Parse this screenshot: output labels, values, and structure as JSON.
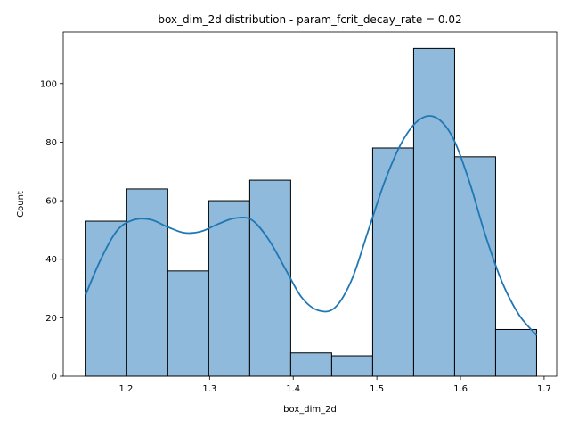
{
  "chart_data": {
    "type": "bar",
    "title": "box_dim_2d distribution - param_fcrit_decay_rate = 0.02",
    "xlabel": "box_dim_2d",
    "ylabel": "Count",
    "xlim": [
      1.125,
      1.715
    ],
    "ylim": [
      0,
      117.6
    ],
    "xticks": [
      1.2,
      1.3,
      1.4,
      1.5,
      1.6,
      1.7
    ],
    "yticks": [
      0,
      20,
      40,
      60,
      80,
      100
    ],
    "xtick_labels": [
      "1.2",
      "1.3",
      "1.4",
      "1.5",
      "1.6",
      "1.7"
    ],
    "ytick_labels": [
      "0",
      "20",
      "40",
      "60",
      "80",
      "100"
    ],
    "grid": false,
    "bar_color": "#8fbadb",
    "bar_edge_color": "#000000",
    "kde_color": "#1f77b4",
    "bins": [
      {
        "x0": 1.152,
        "x1": 1.201,
        "count": 53
      },
      {
        "x0": 1.201,
        "x1": 1.25,
        "count": 64
      },
      {
        "x0": 1.25,
        "x1": 1.299,
        "count": 36
      },
      {
        "x0": 1.299,
        "x1": 1.348,
        "count": 60
      },
      {
        "x0": 1.348,
        "x1": 1.397,
        "count": 67
      },
      {
        "x0": 1.397,
        "x1": 1.446,
        "count": 8
      },
      {
        "x0": 1.446,
        "x1": 1.495,
        "count": 7
      },
      {
        "x0": 1.495,
        "x1": 1.544,
        "count": 78
      },
      {
        "x0": 1.544,
        "x1": 1.593,
        "count": 112
      },
      {
        "x0": 1.593,
        "x1": 1.642,
        "count": 75
      },
      {
        "x0": 1.642,
        "x1": 1.691,
        "count": 16
      }
    ],
    "kde": {
      "x": [
        1.152,
        1.17,
        1.19,
        1.21,
        1.23,
        1.25,
        1.27,
        1.29,
        1.31,
        1.33,
        1.35,
        1.37,
        1.39,
        1.41,
        1.43,
        1.45,
        1.47,
        1.49,
        1.51,
        1.53,
        1.55,
        1.57,
        1.59,
        1.61,
        1.63,
        1.65,
        1.67,
        1.691
      ],
      "y": [
        28,
        40,
        50,
        53.5,
        53.5,
        51,
        49,
        49.5,
        52,
        54,
        53.5,
        47,
        37,
        27,
        22.5,
        23.5,
        33,
        50,
        67,
        80,
        87.5,
        88.5,
        82,
        67,
        48,
        32,
        21,
        14
      ]
    }
  }
}
